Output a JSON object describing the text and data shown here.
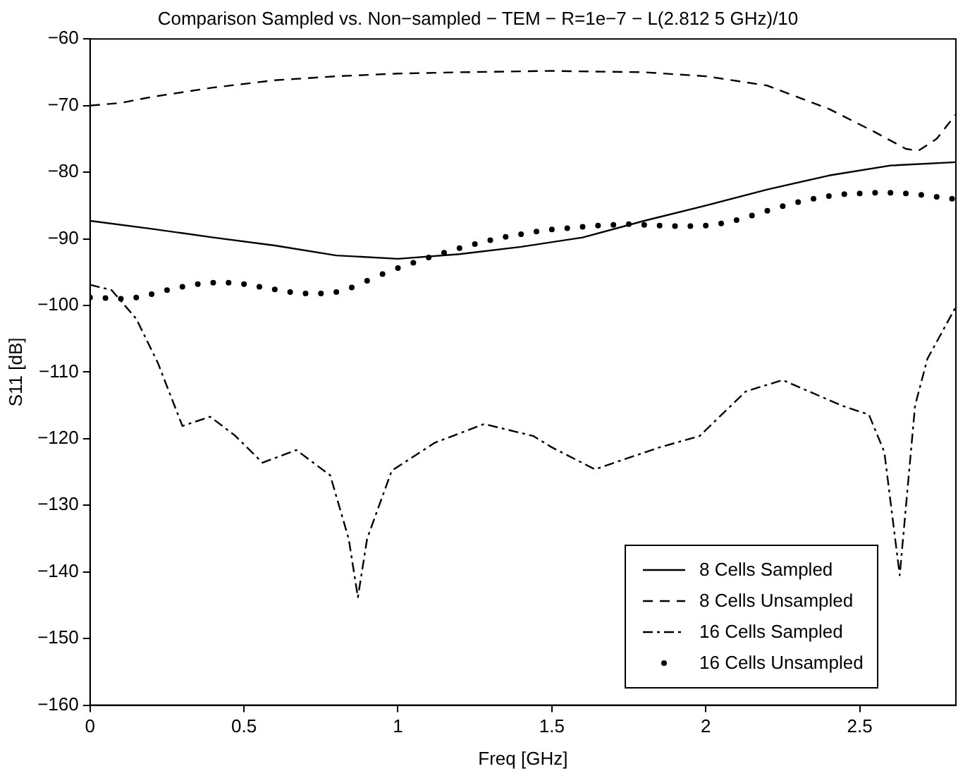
{
  "chart_data": {
    "type": "line",
    "title": "Comparison Sampled vs. Non−sampled − TEM − R=1e−7 − L(2.812 5 GHz)/10",
    "xlabel": "Freq [GHz]",
    "ylabel": "S11 [dB]",
    "xlim": [
      0,
      2.8125
    ],
    "xticks": [
      0,
      0.5,
      1,
      1.5,
      2,
      2.5
    ],
    "ylim": [
      -160,
      -60
    ],
    "yticks": [
      -160,
      -150,
      -140,
      -130,
      -120,
      -110,
      -100,
      -90,
      -80,
      -70,
      -60
    ],
    "legend": "bottom right",
    "series": [
      {
        "name": "8 Cells Sampled",
        "color": "#000000",
        "line_style": "solid",
        "x": [
          0,
          0.2,
          0.4,
          0.6,
          0.8,
          1.0,
          1.2,
          1.4,
          1.6,
          1.8,
          2.0,
          2.2,
          2.4,
          2.6,
          2.8125
        ],
        "values": [
          -87.3,
          -88.5,
          -89.8,
          -91.0,
          -92.5,
          -93.0,
          -92.3,
          -91.2,
          -89.8,
          -87.3,
          -85.0,
          -82.6,
          -80.5,
          -79.0,
          -78.5
        ]
      },
      {
        "name": "8 Cells Unsampled",
        "color": "#000000",
        "line_style": "dashed",
        "x": [
          0,
          0.1,
          0.2,
          0.4,
          0.6,
          0.8,
          1.0,
          1.2,
          1.5,
          1.8,
          2.0,
          2.2,
          2.4,
          2.55,
          2.65,
          2.69,
          2.75,
          2.8125
        ],
        "values": [
          -70,
          -69.6,
          -68.7,
          -67.3,
          -66.2,
          -65.6,
          -65.2,
          -65,
          -64.8,
          -65.0,
          -65.6,
          -67.0,
          -70.5,
          -74,
          -76.5,
          -76.8,
          -75,
          -71.3
        ]
      },
      {
        "name": "16 Cells Sampled",
        "color": "#000000",
        "line_style": "dashdot",
        "x": [
          0,
          0.07,
          0.15,
          0.22,
          0.3,
          0.39,
          0.47,
          0.56,
          0.67,
          0.78,
          0.84,
          0.87,
          0.9,
          0.98,
          1.12,
          1.28,
          1.44,
          1.5,
          1.64,
          1.85,
          1.98,
          2.13,
          2.25,
          2.44,
          2.53,
          2.58,
          2.63,
          2.68,
          2.72,
          2.8125
        ],
        "values": [
          -96.9,
          -97.7,
          -102,
          -108.6,
          -118.1,
          -116.7,
          -119.5,
          -123.6,
          -121.7,
          -125.5,
          -135,
          -143.8,
          -135,
          -124.8,
          -120.6,
          -117.8,
          -119.6,
          -121.3,
          -124.6,
          -121.3,
          -119.6,
          -112.9,
          -111.2,
          -115.0,
          -116.4,
          -122,
          -140.5,
          -115,
          -108,
          -100.2
        ]
      },
      {
        "name": "16 Cells Unsampled",
        "color": "#000000",
        "type": "scatter",
        "marker": "circle",
        "x": [
          0,
          0.05,
          0.1,
          0.15,
          0.2,
          0.25,
          0.3,
          0.35,
          0.4,
          0.45,
          0.5,
          0.55,
          0.6,
          0.65,
          0.7,
          0.75,
          0.8,
          0.85,
          0.9,
          0.95,
          1.0,
          1.05,
          1.1,
          1.15,
          1.2,
          1.25,
          1.3,
          1.35,
          1.4,
          1.45,
          1.5,
          1.55,
          1.6,
          1.65,
          1.7,
          1.75,
          1.8,
          1.85,
          1.9,
          1.95,
          2.0,
          2.05,
          2.1,
          2.15,
          2.2,
          2.25,
          2.3,
          2.35,
          2.4,
          2.45,
          2.5,
          2.55,
          2.6,
          2.65,
          2.7,
          2.75,
          2.8
        ],
        "values": [
          -98.8,
          -98.9,
          -99.0,
          -98.8,
          -98.3,
          -97.7,
          -97.2,
          -96.8,
          -96.6,
          -96.6,
          -96.8,
          -97.2,
          -97.6,
          -98.0,
          -98.2,
          -98.2,
          -98.0,
          -97.3,
          -96.3,
          -95.3,
          -94.4,
          -93.6,
          -92.8,
          -92.1,
          -91.4,
          -90.8,
          -90.2,
          -89.7,
          -89.3,
          -88.9,
          -88.6,
          -88.4,
          -88.2,
          -88.0,
          -87.9,
          -87.8,
          -87.9,
          -88.0,
          -88.1,
          -88.1,
          -88.0,
          -87.7,
          -87.2,
          -86.5,
          -85.8,
          -85.1,
          -84.5,
          -84.0,
          -83.6,
          -83.3,
          -83.2,
          -83.1,
          -83.1,
          -83.2,
          -83.4,
          -83.7,
          -84.0
        ]
      }
    ]
  }
}
